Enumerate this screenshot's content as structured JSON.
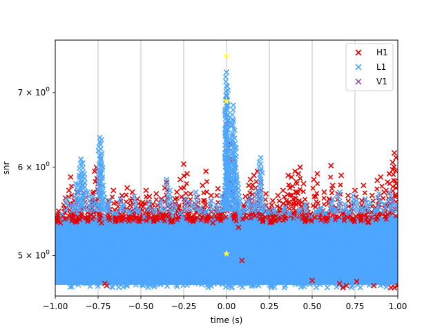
{
  "chart_data": {
    "type": "scatter",
    "xlabel": "time (s)",
    "ylabel": "snr",
    "xlim": [
      -1.0,
      1.0
    ],
    "ylim": [
      4.6,
      7.8
    ],
    "y_scale": "log",
    "grid": "x-major",
    "legend_placement": "top-right",
    "x_ticks": [
      {
        "value": -1.0,
        "label": "−1.00"
      },
      {
        "value": -0.75,
        "label": "−0.75"
      },
      {
        "value": -0.5,
        "label": "−0.50"
      },
      {
        "value": -0.25,
        "label": "−0.25"
      },
      {
        "value": 0.0,
        "label": "0.00"
      },
      {
        "value": 0.25,
        "label": "0.25"
      },
      {
        "value": 0.5,
        "label": "0.50"
      },
      {
        "value": 0.75,
        "label": "0.75"
      },
      {
        "value": 1.0,
        "label": "1.00"
      }
    ],
    "y_ticks": [
      {
        "value": 5,
        "base": "5 × 10",
        "exp": "0"
      },
      {
        "value": 6,
        "base": "6 × 10",
        "exp": "0"
      },
      {
        "value": 7,
        "base": "7 × 10",
        "exp": "0"
      }
    ],
    "series": [
      {
        "name": "H1",
        "color": "#e60000",
        "marker": "x",
        "points": [
          [
            -0.99,
            5.4
          ],
          [
            -0.98,
            5.48
          ],
          [
            -0.97,
            5.35
          ],
          [
            -0.95,
            5.55
          ],
          [
            -0.94,
            5.63
          ],
          [
            -0.92,
            5.72
          ],
          [
            -0.91,
            5.88
          ],
          [
            -0.9,
            5.45
          ],
          [
            -0.89,
            5.6
          ],
          [
            -0.88,
            5.38
          ],
          [
            -0.87,
            5.7
          ],
          [
            -0.85,
            5.52
          ],
          [
            -0.84,
            5.78
          ],
          [
            -0.82,
            5.64
          ],
          [
            -0.81,
            5.42
          ],
          [
            -0.79,
            5.57
          ],
          [
            -0.78,
            5.68
          ],
          [
            -0.77,
            5.95
          ],
          [
            -0.76,
            6.0
          ],
          [
            -0.75,
            5.8
          ],
          [
            -0.74,
            5.48
          ],
          [
            -0.73,
            5.35
          ],
          [
            -0.71,
            4.72
          ],
          [
            -0.7,
            4.7
          ],
          [
            -0.69,
            5.6
          ],
          [
            -0.68,
            5.5
          ],
          [
            -0.66,
            5.72
          ],
          [
            -0.65,
            5.4
          ],
          [
            -0.64,
            5.58
          ],
          [
            -0.62,
            5.45
          ],
          [
            -0.61,
            5.66
          ],
          [
            -0.6,
            5.52
          ],
          [
            -0.58,
            5.75
          ],
          [
            -0.57,
            5.43
          ],
          [
            -0.56,
            5.6
          ],
          [
            -0.55,
            5.7
          ],
          [
            -0.54,
            5.5
          ],
          [
            -0.52,
            5.62
          ],
          [
            -0.51,
            5.4
          ],
          [
            -0.5,
            5.55
          ],
          [
            -0.49,
            5.58
          ],
          [
            -0.47,
            5.72
          ],
          [
            -0.46,
            5.47
          ],
          [
            -0.45,
            5.65
          ],
          [
            -0.43,
            5.56
          ],
          [
            -0.42,
            5.4
          ],
          [
            -0.41,
            5.68
          ],
          [
            -0.4,
            5.5
          ],
          [
            -0.38,
            5.62
          ],
          [
            -0.37,
            5.45
          ],
          [
            -0.36,
            5.75
          ],
          [
            -0.35,
            5.82
          ],
          [
            -0.33,
            5.55
          ],
          [
            -0.32,
            5.38
          ],
          [
            -0.3,
            5.62
          ],
          [
            -0.29,
            5.7
          ],
          [
            -0.28,
            5.52
          ],
          [
            -0.27,
            5.85
          ],
          [
            -0.25,
            6.04
          ],
          [
            -0.24,
            5.6
          ],
          [
            -0.23,
            5.92
          ],
          [
            -0.22,
            5.45
          ],
          [
            -0.21,
            5.68
          ],
          [
            -0.19,
            5.4
          ],
          [
            -0.18,
            5.56
          ],
          [
            -0.17,
            5.64
          ],
          [
            -0.15,
            5.5
          ],
          [
            -0.14,
            5.78
          ],
          [
            -0.13,
            5.6
          ],
          [
            -0.12,
            5.95
          ],
          [
            -0.11,
            5.43
          ],
          [
            -0.09,
            5.66
          ],
          [
            -0.08,
            5.35
          ],
          [
            -0.06,
            5.55
          ],
          [
            -0.05,
            5.74
          ],
          [
            -0.04,
            5.46
          ],
          [
            -0.02,
            5.62
          ],
          [
            -0.01,
            5.68
          ],
          [
            0.0,
            6.9
          ],
          [
            0.0,
            6.2
          ],
          [
            0.01,
            6.05
          ],
          [
            0.01,
            6.55
          ],
          [
            0.02,
            6.3
          ],
          [
            0.03,
            5.8
          ],
          [
            0.04,
            6.1
          ],
          [
            0.05,
            5.45
          ],
          [
            0.06,
            5.72
          ],
          [
            0.07,
            5.3
          ],
          [
            0.09,
            4.95
          ],
          [
            0.1,
            5.55
          ],
          [
            0.11,
            5.65
          ],
          [
            0.13,
            5.78
          ],
          [
            0.14,
            5.85
          ],
          [
            0.15,
            5.62
          ],
          [
            0.16,
            5.9
          ],
          [
            0.17,
            5.75
          ],
          [
            0.18,
            5.95
          ],
          [
            0.19,
            5.58
          ],
          [
            0.2,
            5.82
          ],
          [
            0.21,
            5.4
          ],
          [
            0.23,
            5.68
          ],
          [
            0.25,
            5.5
          ],
          [
            0.26,
            5.36
          ],
          [
            0.27,
            5.6
          ],
          [
            0.28,
            5.44
          ],
          [
            0.3,
            5.66
          ],
          [
            0.31,
            5.52
          ],
          [
            0.33,
            5.72
          ],
          [
            0.34,
            5.48
          ],
          [
            0.35,
            5.6
          ],
          [
            0.36,
            5.9
          ],
          [
            0.37,
            5.75
          ],
          [
            0.38,
            5.88
          ],
          [
            0.39,
            5.62
          ],
          [
            0.4,
            5.95
          ],
          [
            0.41,
            5.7
          ],
          [
            0.42,
            5.92
          ],
          [
            0.43,
            6.0
          ],
          [
            0.44,
            5.58
          ],
          [
            0.45,
            5.8
          ],
          [
            0.46,
            5.4
          ],
          [
            0.47,
            5.55
          ],
          [
            0.49,
            5.45
          ],
          [
            0.5,
            4.75
          ],
          [
            0.51,
            5.85
          ],
          [
            0.52,
            5.65
          ],
          [
            0.53,
            5.92
          ],
          [
            0.55,
            5.5
          ],
          [
            0.57,
            5.7
          ],
          [
            0.58,
            5.42
          ],
          [
            0.6,
            5.62
          ],
          [
            0.61,
            6.02
          ],
          [
            0.62,
            5.78
          ],
          [
            0.64,
            5.52
          ],
          [
            0.65,
            5.68
          ],
          [
            0.66,
            4.72
          ],
          [
            0.67,
            5.9
          ],
          [
            0.68,
            4.68
          ],
          [
            0.69,
            5.48
          ],
          [
            0.7,
            4.7
          ],
          [
            0.71,
            5.66
          ],
          [
            0.73,
            5.55
          ],
          [
            0.74,
            5.4
          ],
          [
            0.75,
            5.72
          ],
          [
            0.76,
            4.74
          ],
          [
            0.78,
            5.45
          ],
          [
            0.79,
            5.6
          ],
          [
            0.8,
            5.78
          ],
          [
            0.82,
            5.5
          ],
          [
            0.83,
            5.36
          ],
          [
            0.85,
            5.66
          ],
          [
            0.86,
            4.7
          ],
          [
            0.87,
            5.52
          ],
          [
            0.88,
            5.84
          ],
          [
            0.89,
            5.6
          ],
          [
            0.9,
            5.88
          ],
          [
            0.92,
            5.7
          ],
          [
            0.93,
            5.55
          ],
          [
            0.94,
            5.82
          ],
          [
            0.95,
            5.92
          ],
          [
            0.96,
            4.68
          ],
          [
            0.97,
            5.97
          ],
          [
            0.97,
            6.06
          ],
          [
            0.98,
            6.18
          ],
          [
            0.98,
            4.68
          ],
          [
            0.99,
            6.12
          ],
          [
            0.99,
            5.75
          ],
          [
            1.0,
            4.7
          ]
        ]
      },
      {
        "name": "L1",
        "color": "#4da6ff",
        "marker": "x",
        "points": [
          [
            -0.99,
            5.3
          ],
          [
            -0.96,
            5.45
          ],
          [
            -0.93,
            5.62
          ],
          [
            -0.9,
            5.55
          ],
          [
            -0.88,
            5.8
          ],
          [
            -0.86,
            5.9
          ],
          [
            -0.85,
            6.1
          ],
          [
            -0.84,
            6.05
          ],
          [
            -0.83,
            5.92
          ],
          [
            -0.81,
            5.7
          ],
          [
            -0.78,
            5.65
          ],
          [
            -0.76,
            5.58
          ],
          [
            -0.74,
            6.38
          ],
          [
            -0.73,
            6.35
          ],
          [
            -0.74,
            6.15
          ],
          [
            -0.73,
            6.02
          ],
          [
            -0.72,
            5.78
          ],
          [
            -0.7,
            5.52
          ],
          [
            -0.68,
            5.6
          ],
          [
            -0.65,
            5.46
          ],
          [
            -0.62,
            5.62
          ],
          [
            -0.6,
            5.55
          ],
          [
            -0.57,
            5.48
          ],
          [
            -0.54,
            5.65
          ],
          [
            -0.51,
            5.5
          ],
          [
            -0.48,
            5.42
          ],
          [
            -0.45,
            5.58
          ],
          [
            -0.42,
            5.5
          ],
          [
            -0.38,
            5.6
          ],
          [
            -0.35,
            5.85
          ],
          [
            -0.33,
            5.72
          ],
          [
            -0.3,
            5.55
          ],
          [
            -0.27,
            5.46
          ],
          [
            -0.24,
            5.62
          ],
          [
            -0.21,
            5.58
          ],
          [
            -0.18,
            5.7
          ],
          [
            -0.15,
            5.52
          ],
          [
            -0.12,
            5.48
          ],
          [
            -0.09,
            5.6
          ],
          [
            -0.06,
            5.55
          ],
          [
            -0.03,
            5.66
          ],
          [
            -0.02,
            5.62
          ],
          [
            0.0,
            7.3
          ],
          [
            0.0,
            7.1
          ],
          [
            0.0,
            6.95
          ],
          [
            0.0,
            6.8
          ],
          [
            0.0,
            6.65
          ],
          [
            0.0,
            6.45
          ],
          [
            0.01,
            6.25
          ],
          [
            0.01,
            6.1
          ],
          [
            0.02,
            5.95
          ],
          [
            0.03,
            6.4
          ],
          [
            0.04,
            6.82
          ],
          [
            0.04,
            6.6
          ],
          [
            0.05,
            6.3
          ],
          [
            0.05,
            6.05
          ],
          [
            0.06,
            5.85
          ],
          [
            0.07,
            5.7
          ],
          [
            0.08,
            5.6
          ],
          [
            0.1,
            5.5
          ],
          [
            0.12,
            5.58
          ],
          [
            0.14,
            5.64
          ],
          [
            0.16,
            5.56
          ],
          [
            0.18,
            5.72
          ],
          [
            0.2,
            6.12
          ],
          [
            0.2,
            6.04
          ],
          [
            0.22,
            5.55
          ],
          [
            0.25,
            5.48
          ],
          [
            0.28,
            5.5
          ],
          [
            0.31,
            5.44
          ],
          [
            0.34,
            5.52
          ],
          [
            0.37,
            5.46
          ],
          [
            0.4,
            5.4
          ],
          [
            0.43,
            5.5
          ],
          [
            0.46,
            5.56
          ],
          [
            0.49,
            5.42
          ],
          [
            0.52,
            5.48
          ],
          [
            0.55,
            5.52
          ],
          [
            0.58,
            5.46
          ],
          [
            0.61,
            5.58
          ],
          [
            0.62,
            5.62
          ],
          [
            0.64,
            5.5
          ],
          [
            0.66,
            5.7
          ],
          [
            0.69,
            5.56
          ],
          [
            0.71,
            5.48
          ],
          [
            0.74,
            5.66
          ],
          [
            0.76,
            5.6
          ],
          [
            0.79,
            5.52
          ],
          [
            0.81,
            5.62
          ],
          [
            0.84,
            5.58
          ],
          [
            0.87,
            5.5
          ],
          [
            0.89,
            5.68
          ],
          [
            0.92,
            5.56
          ],
          [
            0.95,
            5.7
          ],
          [
            0.97,
            5.6
          ],
          [
            0.99,
            5.55
          ]
        ]
      },
      {
        "name": "V1",
        "color": "#9b59b6",
        "marker": "x",
        "points": []
      }
    ],
    "highlight_points": {
      "color": "#ffff33",
      "marker": "star",
      "points": [
        [
          0.0,
          7.55
        ],
        [
          0.0,
          6.88
        ],
        [
          0.0,
          5.02
        ]
      ]
    },
    "dense_band": {
      "x_min": -1.0,
      "x_max": 1.0,
      "y_min": 4.68,
      "y_max": 5.45,
      "color": "#4da6ff"
    }
  }
}
